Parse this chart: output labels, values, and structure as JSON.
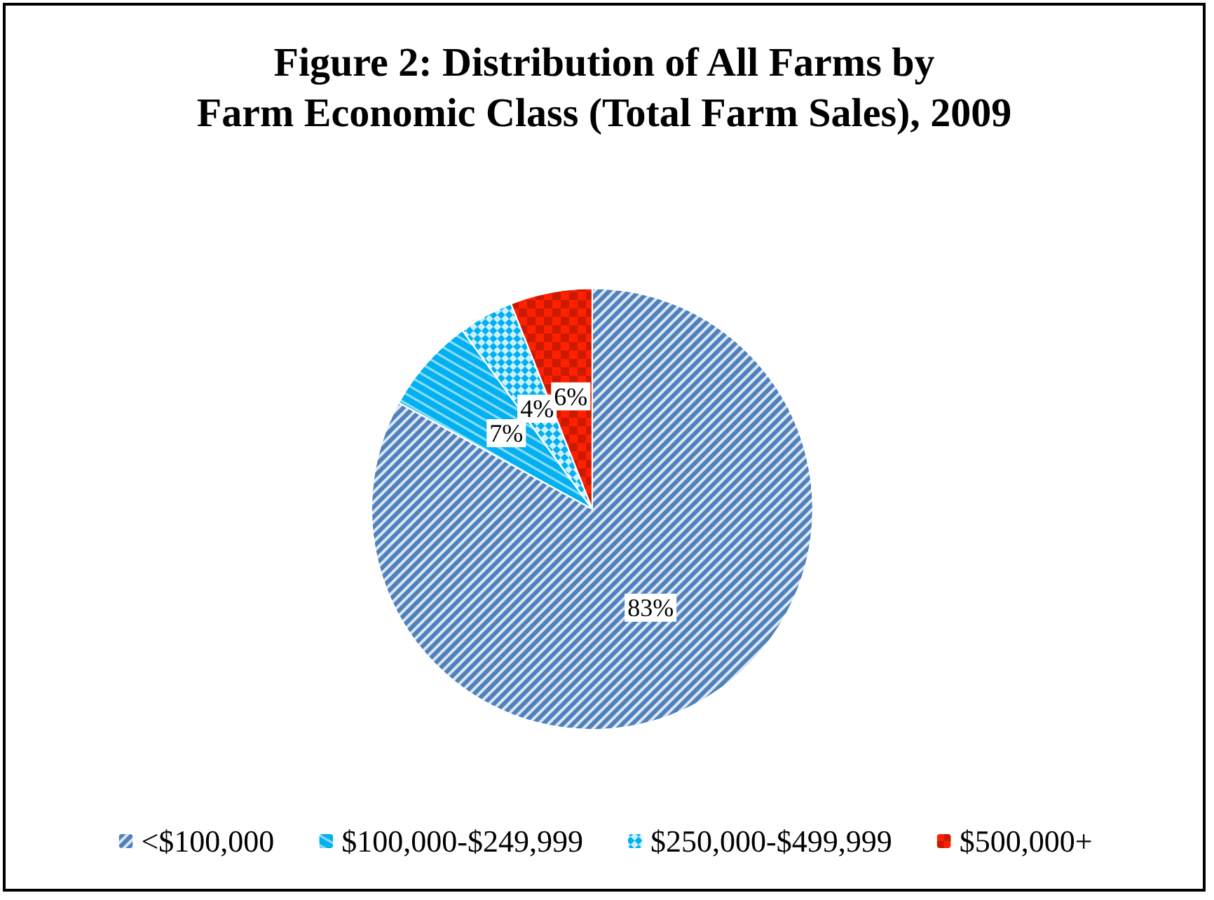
{
  "chart_data": {
    "type": "pie",
    "title": "Figure 2: Distribution of All Farms by\nFarm Economic Class (Total Farm Sales), 2009",
    "categories": [
      "<$100,000",
      "$100,000-$249,999",
      "$250,000-$499,999",
      "$500,000+"
    ],
    "values": [
      83,
      7,
      4,
      6
    ],
    "colors": [
      "#4f81bd",
      "#00b0f0",
      "#00b0f0",
      "#ff2000"
    ],
    "value_labels": [
      "83%",
      "7%",
      "4%",
      "6%"
    ],
    "legend": "bottom"
  }
}
